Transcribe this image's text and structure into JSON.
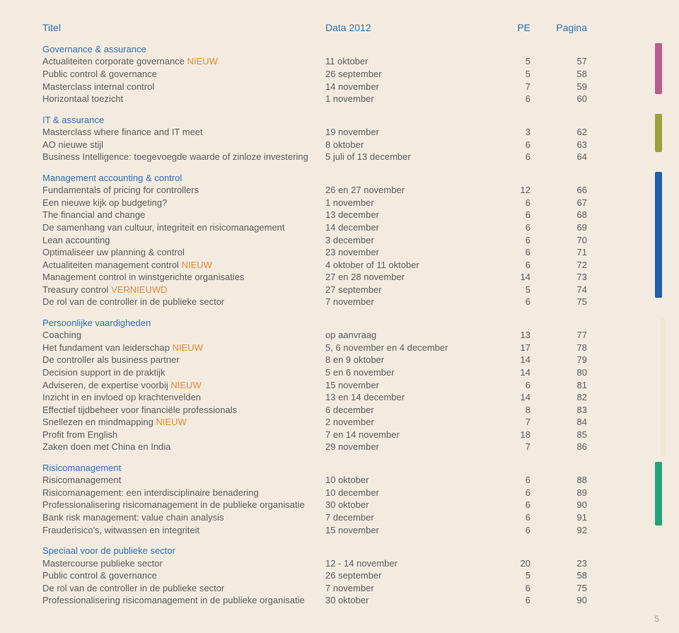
{
  "header": {
    "title": "Titel",
    "data": "Data 2012",
    "pe": "PE",
    "pagina": "Pagina"
  },
  "sections": [
    {
      "name": "Governance & assurance",
      "tab_color": "#bb5c8c",
      "tab_top": 0,
      "tab_h": 72,
      "tab_partial": false,
      "rows": [
        {
          "titleHtml": "Actualiteiten corporate governance <span class='orange'>NIEUW</span>",
          "data": "11 oktober",
          "pe": "5",
          "pag": "57"
        },
        {
          "titleHtml": "Public control & governance",
          "data": "26 september",
          "pe": "5",
          "pag": "58"
        },
        {
          "titleHtml": "Masterclass internal control",
          "data": "14 november",
          "pe": "7",
          "pag": "59"
        },
        {
          "titleHtml": "Horizontaal toezicht",
          "data": "1 november",
          "pe": "6",
          "pag": "60"
        }
      ]
    },
    {
      "name": "IT & assurance",
      "tab_color": "#9aa13d",
      "tab_top": 0,
      "tab_h": 54,
      "tab_partial": false,
      "rows": [
        {
          "titleHtml": "Masterclass where finance and IT meet",
          "data": "19 november",
          "pe": "3",
          "pag": "62"
        },
        {
          "titleHtml": "AO nieuwe stijl",
          "data": "8 oktober",
          "pe": "6",
          "pag": "63"
        },
        {
          "titleHtml": "Business Intelligence: toegevoegde waarde of zinloze investering",
          "data": "5 juli of 13 december",
          "pe": "6",
          "pag": "64"
        }
      ]
    },
    {
      "name": "Management accounting & control",
      "tab_color": "#1f5fae",
      "tab_top": 0,
      "tab_h": 178,
      "tab_partial": false,
      "rows": [
        {
          "titleHtml": "Fundamentals of pricing for controllers",
          "data": "26 en 27 november",
          "pe": "12",
          "pag": "66"
        },
        {
          "titleHtml": "Een nieuwe kijk op budgeting?",
          "data": "1 november",
          "pe": "6",
          "pag": "67"
        },
        {
          "titleHtml": "The financial and change",
          "data": "13 december",
          "pe": "6",
          "pag": "68"
        },
        {
          "titleHtml": "De samenhang van cultuur, integriteit en risicomanagement",
          "data": "14 december",
          "pe": "6",
          "pag": "69"
        },
        {
          "titleHtml": "Lean accounting",
          "data": "3 december",
          "pe": "6",
          "pag": "70"
        },
        {
          "titleHtml": "Optimaliseer uw planning & control",
          "data": "23 november",
          "pe": "6",
          "pag": "71"
        },
        {
          "titleHtml": "Actualiteiten management control <span class='orange'>NIEUW</span>",
          "data": "4 oktober of 11 oktober",
          "pe": "6",
          "pag": "72"
        },
        {
          "titleHtml": "Management control in winstgerichte organisaties",
          "data": "27 en 28 november",
          "pe": "14",
          "pag": "73"
        },
        {
          "titleHtml": "Treasury control  <span class='orange'>VERNIEUWD</span>",
          "data": "27 september",
          "pe": "5",
          "pag": "74"
        },
        {
          "titleHtml": "De rol van de controller in de publieke sector",
          "data": "7 november",
          "pe": "6",
          "pag": "75"
        }
      ]
    },
    {
      "name": "Persoonlijke vaardigheden",
      "tab_color": "#f0e5d5",
      "tab_top": 0,
      "tab_h": 196,
      "tab_partial": true,
      "rows": [
        {
          "titleHtml": "Coaching",
          "data": "op aanvraag",
          "pe": "13",
          "pag": "77"
        },
        {
          "titleHtml": "Het fundament van leiderschap <span class='orange'>NIEUW</span>",
          "data": "5, 6 november en 4 december",
          "pe": "17",
          "pag": "78"
        },
        {
          "titleHtml": "De controller als business partner",
          "data": "8 en 9 oktober",
          "pe": "14",
          "pag": "79"
        },
        {
          "titleHtml": "Decision support in de praktijk",
          "data": "5 en 6 november",
          "pe": "14",
          "pag": "80"
        },
        {
          "titleHtml": "Adviseren, de expertise voorbij <span class='orange'>NIEUW</span>",
          "data": "15 november",
          "pe": "6",
          "pag": "81"
        },
        {
          "titleHtml": "Inzicht in en invloed op krachtenvelden",
          "data": "13 en 14 december",
          "pe": "14",
          "pag": "82"
        },
        {
          "titleHtml": "Effectief tijdbeheer voor financiële professionals",
          "data": "6 december",
          "pe": "8",
          "pag": "83"
        },
        {
          "titleHtml": "Snellezen en mindmapping <span class='orange'>NIEUW</span>",
          "data": "2 november",
          "pe": "7",
          "pag": "84"
        },
        {
          "titleHtml": "Profit from English",
          "data": "7 en 14 november",
          "pe": "18",
          "pag": "85"
        },
        {
          "titleHtml": "Zaken doen met China en India",
          "data": "29 november",
          "pe": "7",
          "pag": "86"
        }
      ]
    },
    {
      "name": "Risicomanagement",
      "tab_color": "#21a37a",
      "tab_top": 0,
      "tab_h": 90,
      "tab_partial": false,
      "rows": [
        {
          "titleHtml": "Risicomanagement",
          "data": "10 oktober",
          "pe": "6",
          "pag": "88"
        },
        {
          "titleHtml": "Risicomanagement: een interdisciplinaire benadering",
          "data": "10 december",
          "pe": "6",
          "pag": "89"
        },
        {
          "titleHtml": "Professionalisering risicomanagement in de publieke organisatie",
          "data": "30 oktober",
          "pe": "6",
          "pag": "90"
        },
        {
          "titleHtml": "Bank risk management: value chain analysis",
          "data": "7 december",
          "pe": "6",
          "pag": "91"
        },
        {
          "titleHtml": "Frauderisico's, witwassen en integriteit",
          "data": "15 november",
          "pe": "6",
          "pag": "92"
        }
      ]
    },
    {
      "name": "Speciaal voor de publieke sector",
      "tab_color": null,
      "tab_top": 0,
      "tab_h": 0,
      "rows": [
        {
          "titleHtml": "Mastercourse publieke sector",
          "data": "12 - 14 november",
          "pe": "20",
          "pag": "23"
        },
        {
          "titleHtml": "Public control & governance",
          "data": "26 september",
          "pe": "5",
          "pag": "58"
        },
        {
          "titleHtml": "De rol van de controller in de publieke sector",
          "data": "7 november",
          "pe": "6",
          "pag": "75"
        },
        {
          "titleHtml": "Professionalisering risicomanagement in de publieke organisatie",
          "data": "30 oktober",
          "pe": "6",
          "pag": "90"
        }
      ]
    }
  ],
  "page_number": "5"
}
